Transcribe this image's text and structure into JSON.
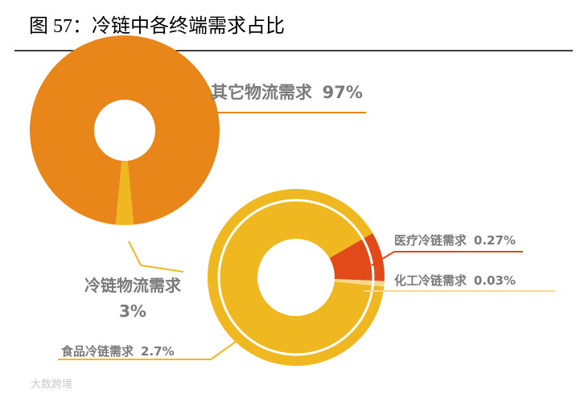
{
  "title": "图 57：冷链中各终端需求占比",
  "watermark": "大数跨境",
  "chart_data": [
    {
      "type": "donut",
      "categories": [
        "其它物流需求",
        "冷链物流需求"
      ],
      "values": [
        97,
        3
      ],
      "value_labels": [
        "97%",
        "3%"
      ],
      "colors": [
        "#e8861a",
        "#f0b820"
      ]
    },
    {
      "type": "donut",
      "categories": [
        "食品冷链需求",
        "医疗冷链需求",
        "化工冷链需求"
      ],
      "values": [
        2.7,
        0.27,
        0.03
      ],
      "value_labels": [
        "2.7%",
        "0.27%",
        "0.03%"
      ],
      "colors": [
        "#f0b820",
        "#e24a1a",
        "#f7d88c"
      ]
    }
  ]
}
